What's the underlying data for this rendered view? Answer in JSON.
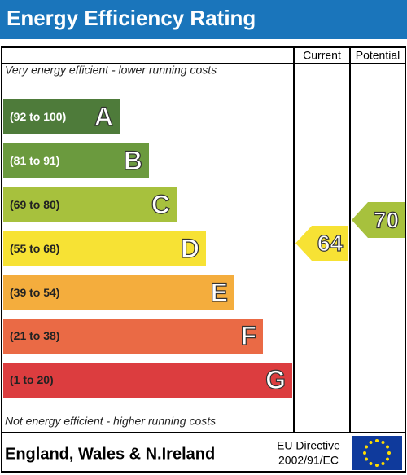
{
  "header": {
    "title": "Energy Efficiency Rating",
    "columns": [
      "Current",
      "Potential"
    ]
  },
  "top_note": "Very energy efficient - lower running costs",
  "bottom_note": "Not energy efficient - higher running costs",
  "bands": [
    {
      "range": "(92 to 100)",
      "letter": "A",
      "color": "#4e7b3a"
    },
    {
      "range": "(81 to 91)",
      "letter": "B",
      "color": "#6b9a3e"
    },
    {
      "range": "(69 to 80)",
      "letter": "C",
      "color": "#a7c13d"
    },
    {
      "range": "(55 to 68)",
      "letter": "D",
      "color": "#f7e234"
    },
    {
      "range": "(39 to 54)",
      "letter": "E",
      "color": "#f4ad3d"
    },
    {
      "range": "(21 to 38)",
      "letter": "F",
      "color": "#ea6a45"
    },
    {
      "range": "(1 to 20)",
      "letter": "G",
      "color": "#dc3d3f"
    }
  ],
  "current": {
    "value": 64,
    "color": "#f7e234"
  },
  "potential": {
    "value": 70,
    "color": "#a7c13d"
  },
  "footer": {
    "region": "England, Wales & N.Ireland",
    "directive": [
      "EU Directive",
      "2002/91/EC"
    ]
  }
}
